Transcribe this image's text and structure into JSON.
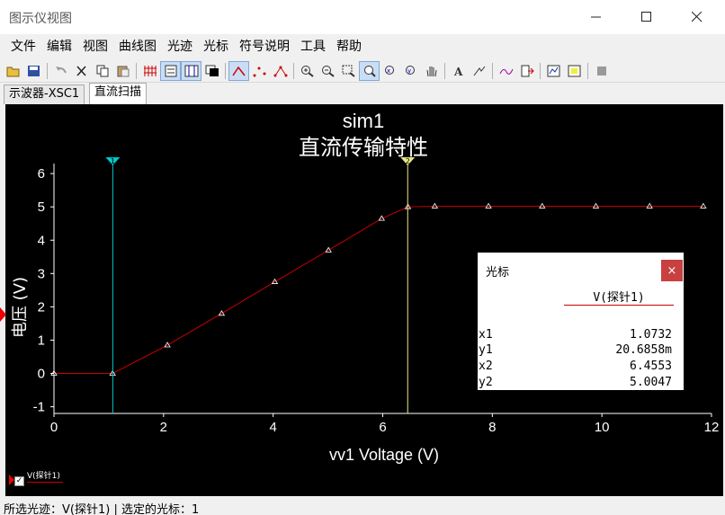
{
  "window": {
    "title": "图示仪视图",
    "minimize_icon": "minimize-icon",
    "maximize_icon": "maximize-icon",
    "close_icon": "close-icon"
  },
  "menu": {
    "items": [
      "文件",
      "编辑",
      "视图",
      "曲线图",
      "光迹",
      "光标",
      "符号说明",
      "工具",
      "帮助"
    ]
  },
  "toolbar": {
    "icons": [
      "open-icon",
      "save-icon",
      "undo-icon",
      "cut-icon",
      "copy-icon",
      "paste-icon",
      "grid-icon",
      "legend-icon",
      "cursor-toggle-icon",
      "dark-background-icon",
      "trace-line-icon",
      "trace-points-icon",
      "trace-line-points-icon",
      "zoom-in-icon",
      "zoom-out-icon",
      "zoom-area-icon",
      "zoom-fit-icon",
      "zoom-x-icon",
      "zoom-y-icon",
      "pan-hand-icon",
      "text-tool-icon",
      "probe-tool-icon",
      "trace-edit-icon",
      "export-icon",
      "chart-properties-icon",
      "page-properties-icon",
      "stop-icon"
    ]
  },
  "tabs": [
    {
      "label": "示波器-XSC1",
      "active": false
    },
    {
      "label": "直流扫描",
      "active": true
    }
  ],
  "chart_data": {
    "type": "line",
    "title": "sim1",
    "subtitle": "直流传输特性",
    "xlabel": "vv1 Voltage (V)",
    "ylabel": "电压 (V)",
    "xlim": [
      0,
      12
    ],
    "ylim": [
      -1.2,
      6.3
    ],
    "x_ticks": [
      "0",
      "2",
      "4",
      "6",
      "8",
      "10",
      "12"
    ],
    "y_ticks": [
      "-1",
      "0",
      "1",
      "2",
      "3",
      "4",
      "5",
      "6"
    ],
    "background": "#000000",
    "grid": false,
    "series": [
      {
        "name": "V(探针1)",
        "color": "#cc0000",
        "x": [
          0,
          1.07,
          2.07,
          3.06,
          4.03,
          5.01,
          5.98,
          6.46,
          6.95,
          7.93,
          8.91,
          9.89,
          10.87,
          11.85
        ],
        "y": [
          0,
          0,
          0.85,
          1.8,
          2.75,
          3.7,
          4.65,
          5.0,
          5.02,
          5.02,
          5.02,
          5.02,
          5.02,
          5.02
        ]
      }
    ],
    "cursors": [
      {
        "label": "1",
        "x": 1.0732,
        "color": "#00c8c8"
      },
      {
        "label": "2",
        "x": 6.4553,
        "color": "#e8e888"
      }
    ]
  },
  "cursor_panel": {
    "title": "光标",
    "close_label": "×",
    "column_header": "V(探针1)",
    "rows": [
      {
        "key": "x1",
        "value": "1.0732"
      },
      {
        "key": "y1",
        "value": "20.6858m"
      },
      {
        "key": "x2",
        "value": "6.4553"
      },
      {
        "key": "y2",
        "value": "5.0047"
      }
    ]
  },
  "legend": {
    "label": "V(探针1)",
    "checked": true
  },
  "status": {
    "text": "所选光迹：V(探针1)  |  选定的光标：1"
  }
}
